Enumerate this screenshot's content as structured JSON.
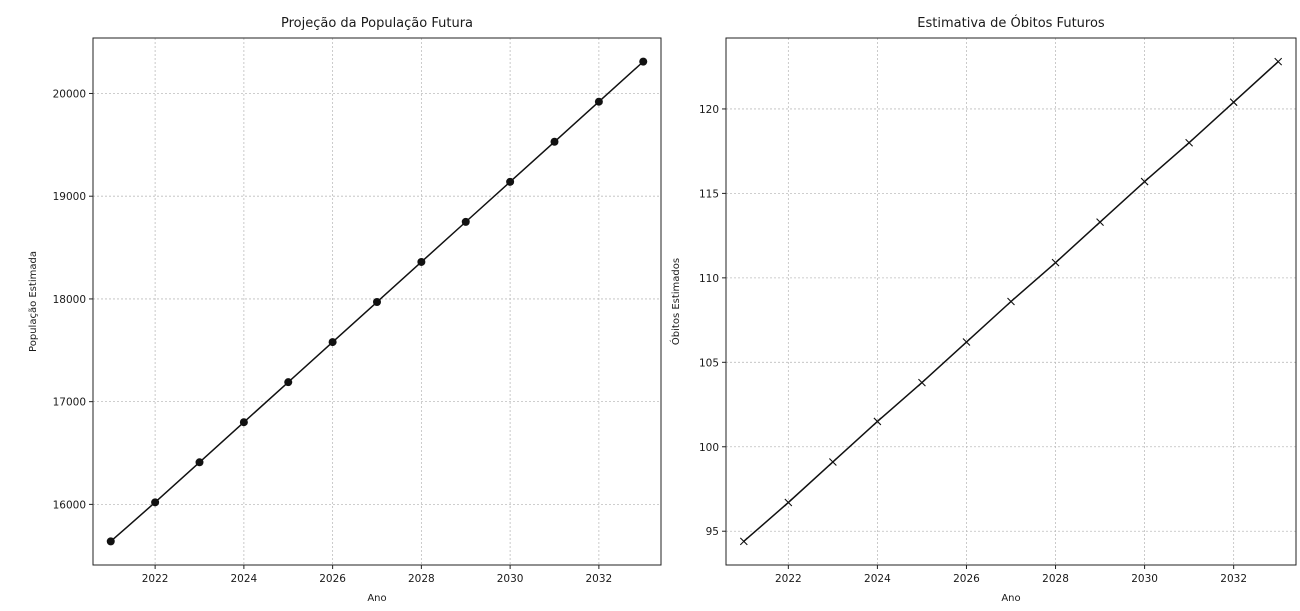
{
  "chart_data": [
    {
      "type": "line",
      "title": "Projeção da População Futura",
      "xlabel": "Ano",
      "ylabel": "População Estimada",
      "x": [
        2021,
        2022,
        2023,
        2024,
        2025,
        2026,
        2027,
        2028,
        2029,
        2030,
        2031,
        2032,
        2033
      ],
      "series": [
        {
          "marker": "circle",
          "color": "#111111",
          "values": [
            15640,
            16020,
            16410,
            16800,
            17190,
            17580,
            17970,
            18360,
            18750,
            19140,
            19530,
            19920,
            20310
          ]
        }
      ],
      "xlim": [
        2020.6,
        2033.4
      ],
      "ylim": [
        15410,
        20540
      ],
      "xticks": [
        2022,
        2024,
        2026,
        2028,
        2030,
        2032
      ],
      "yticks": [
        16000,
        17000,
        18000,
        19000,
        20000
      ],
      "grid": true
    },
    {
      "type": "line",
      "title": "Estimativa de Óbitos Futuros",
      "xlabel": "Ano",
      "ylabel": "Óbitos Estimados",
      "x": [
        2021,
        2022,
        2023,
        2024,
        2025,
        2026,
        2027,
        2028,
        2029,
        2030,
        2031,
        2032,
        2033
      ],
      "series": [
        {
          "marker": "x",
          "color": "#111111",
          "values": [
            94.4,
            96.7,
            99.1,
            101.5,
            103.8,
            106.2,
            108.6,
            110.9,
            113.3,
            115.7,
            118.0,
            120.4,
            122.8
          ]
        }
      ],
      "xlim": [
        2020.6,
        2033.4
      ],
      "ylim": [
        93.0,
        124.2
      ],
      "xticks": [
        2022,
        2024,
        2026,
        2028,
        2030,
        2032
      ],
      "yticks": [
        95,
        100,
        105,
        110,
        115,
        120
      ],
      "grid": true
    }
  ]
}
